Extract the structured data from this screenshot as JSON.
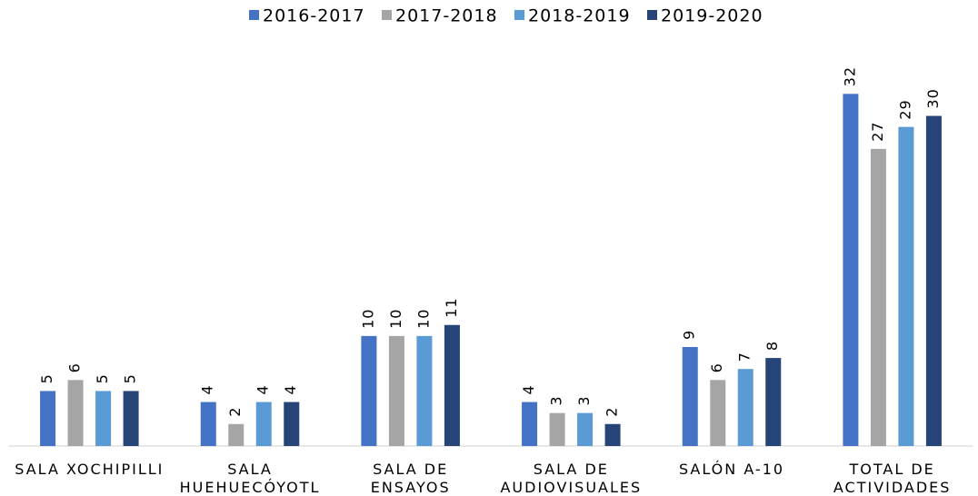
{
  "chart_data": {
    "type": "bar",
    "categories": [
      [
        "SALA XOCHIPILLI"
      ],
      [
        "SALA",
        "HUEHUECÓYOTL"
      ],
      [
        "SALA DE",
        "ENSAYOS"
      ],
      [
        "SALA DE",
        "AUDIOVISUALES"
      ],
      [
        "SALÓN A-10"
      ],
      [
        "TOTAL DE",
        "ACTIVIDADES"
      ]
    ],
    "series": [
      {
        "name": "2016-2017",
        "color": "#4472c4",
        "values": [
          5,
          4,
          10,
          4,
          9,
          32
        ]
      },
      {
        "name": "2017-2018",
        "color": "#a5a5a5",
        "values": [
          6,
          2,
          10,
          3,
          6,
          27
        ]
      },
      {
        "name": "2018-2019",
        "color": "#5b9bd5",
        "values": [
          5,
          4,
          10,
          3,
          7,
          29
        ]
      },
      {
        "name": "2019-2020",
        "color": "#264478",
        "values": [
          5,
          4,
          11,
          2,
          8,
          30
        ]
      }
    ],
    "ylim": [
      0,
      35
    ],
    "legend": "top"
  }
}
